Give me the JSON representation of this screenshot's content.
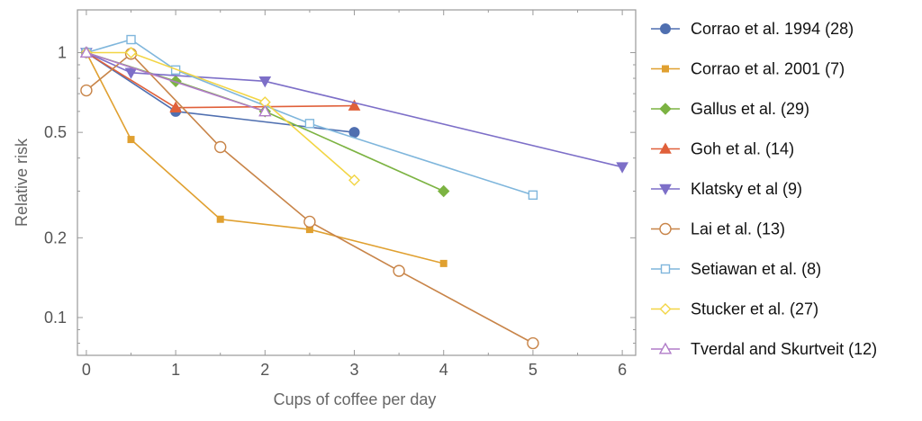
{
  "chart_data": {
    "type": "line",
    "xlabel": "Cups of coffee per day",
    "ylabel": "Relative risk",
    "yscale": "log",
    "xlim": [
      -0.1,
      6.15
    ],
    "ylim": [
      0.072,
      1.45
    ],
    "xticks": [
      0,
      1,
      2,
      3,
      4,
      5,
      6
    ],
    "xtick_labels": [
      "0",
      "1",
      "2",
      "3",
      "4",
      "5",
      "6"
    ],
    "yticks": [
      0.1,
      0.2,
      0.5,
      1
    ],
    "ytick_labels": [
      "0.1",
      "0.2",
      "0.5",
      "1"
    ],
    "grid": false,
    "legend_position": "right",
    "series": [
      {
        "name": "Corrao et al. 1994 (28)",
        "color": "#4f6fb0",
        "marker": "circle-filled",
        "x": [
          0,
          1,
          3
        ],
        "y": [
          1.0,
          0.6,
          0.5
        ]
      },
      {
        "name": "Corrao et al. 2001 (7)",
        "color": "#e0a030",
        "marker": "square-filled",
        "x": [
          0,
          0.5,
          1.5,
          2.5,
          4
        ],
        "y": [
          1.0,
          0.47,
          0.235,
          0.215,
          0.16
        ]
      },
      {
        "name": "Gallus et al. (29)",
        "color": "#7cb342",
        "marker": "diamond-filled",
        "x": [
          0,
          1,
          2,
          4
        ],
        "y": [
          1.0,
          0.78,
          0.6,
          0.3
        ]
      },
      {
        "name": "Goh et al. (14)",
        "color": "#e0603a",
        "marker": "triangle-up-filled",
        "x": [
          0,
          1,
          3
        ],
        "y": [
          1.0,
          0.62,
          0.63
        ]
      },
      {
        "name": "Klatsky et al (9)",
        "color": "#7d6fc8",
        "marker": "triangle-down-filled",
        "x": [
          0,
          0.5,
          2,
          6
        ],
        "y": [
          1.0,
          0.84,
          0.78,
          0.37
        ]
      },
      {
        "name": "Lai et al. (13)",
        "color": "#c88448",
        "marker": "circle-open",
        "x": [
          0,
          0.5,
          1.5,
          2.5,
          3.5,
          5
        ],
        "y": [
          0.72,
          0.99,
          0.44,
          0.23,
          0.15,
          0.08
        ]
      },
      {
        "name": "Setiawan et al. (8)",
        "color": "#7fb6dc",
        "marker": "square-open",
        "x": [
          0,
          0.5,
          1,
          2.5,
          5
        ],
        "y": [
          1.0,
          1.12,
          0.86,
          0.54,
          0.29
        ]
      },
      {
        "name": "Stucker et al. (27)",
        "color": "#f2d544",
        "marker": "diamond-open",
        "x": [
          0,
          0.5,
          2,
          3
        ],
        "y": [
          1.0,
          1.0,
          0.65,
          0.33
        ]
      },
      {
        "name": "Tverdal and Skurtveit (12)",
        "color": "#b07cc8",
        "marker": "triangle-up-open",
        "x": [
          0,
          2
        ],
        "y": [
          1.0,
          0.6
        ]
      }
    ]
  }
}
